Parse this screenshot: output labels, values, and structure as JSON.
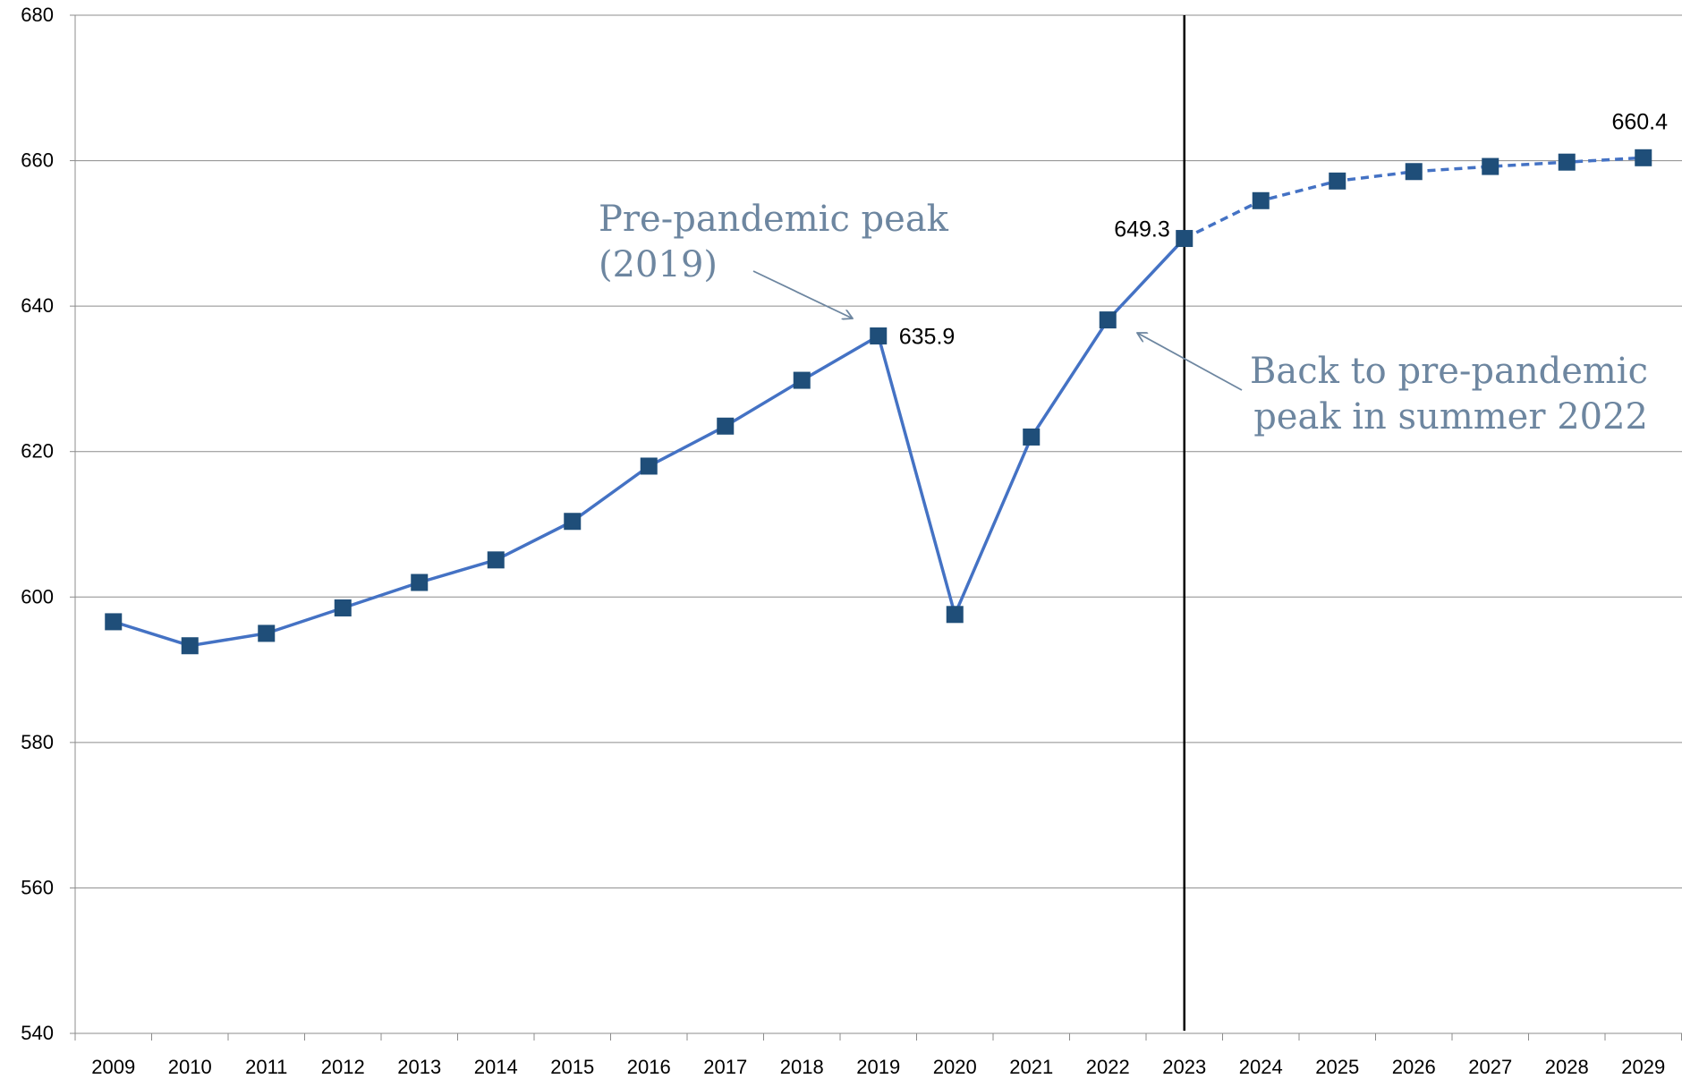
{
  "colors": {
    "series": "#4472c4",
    "marker": "#1f4e79",
    "grid": "#8c8c8c",
    "annotation": "#6d86a0",
    "divider": "#000000"
  },
  "chart_data": {
    "type": "line",
    "title": "",
    "xlabel": "",
    "ylabel": "",
    "ylim": [
      540,
      680
    ],
    "yticks": [
      540,
      560,
      580,
      600,
      620,
      640,
      660,
      680
    ],
    "grid": true,
    "legend": "none",
    "categories": [
      "2009",
      "2010",
      "2011",
      "2012",
      "2013",
      "2014",
      "2015",
      "2016",
      "2017",
      "2018",
      "2019",
      "2020",
      "2021",
      "2022",
      "2023",
      "2024",
      "2025",
      "2026",
      "2027",
      "2028",
      "2029"
    ],
    "values": [
      596.6,
      593.3,
      595.0,
      598.5,
      602.0,
      605.1,
      610.4,
      618.0,
      623.5,
      629.8,
      635.9,
      597.6,
      622.0,
      638.1,
      649.3,
      654.5,
      657.2,
      658.5,
      659.2,
      659.8,
      660.4
    ],
    "series_styles": [
      {
        "style": "solid",
        "from": "2009",
        "to": "2023"
      },
      {
        "style": "dashed",
        "from": "2023",
        "to": "2029"
      }
    ],
    "vertical_line_at": "2023",
    "data_labels": [
      {
        "category": "2019",
        "text": "635.9",
        "position": "right"
      },
      {
        "category": "2023",
        "text": "649.3",
        "position": "left"
      },
      {
        "category": "2029",
        "text": "660.4",
        "position": "above"
      }
    ],
    "annotations": [
      {
        "lines": [
          "Pre-pandemic peak",
          "(2019)"
        ],
        "points_to": "2019"
      },
      {
        "lines": [
          "Back to pre-pandemic",
          "peak in summer 2022"
        ],
        "points_to": "2022"
      }
    ]
  }
}
